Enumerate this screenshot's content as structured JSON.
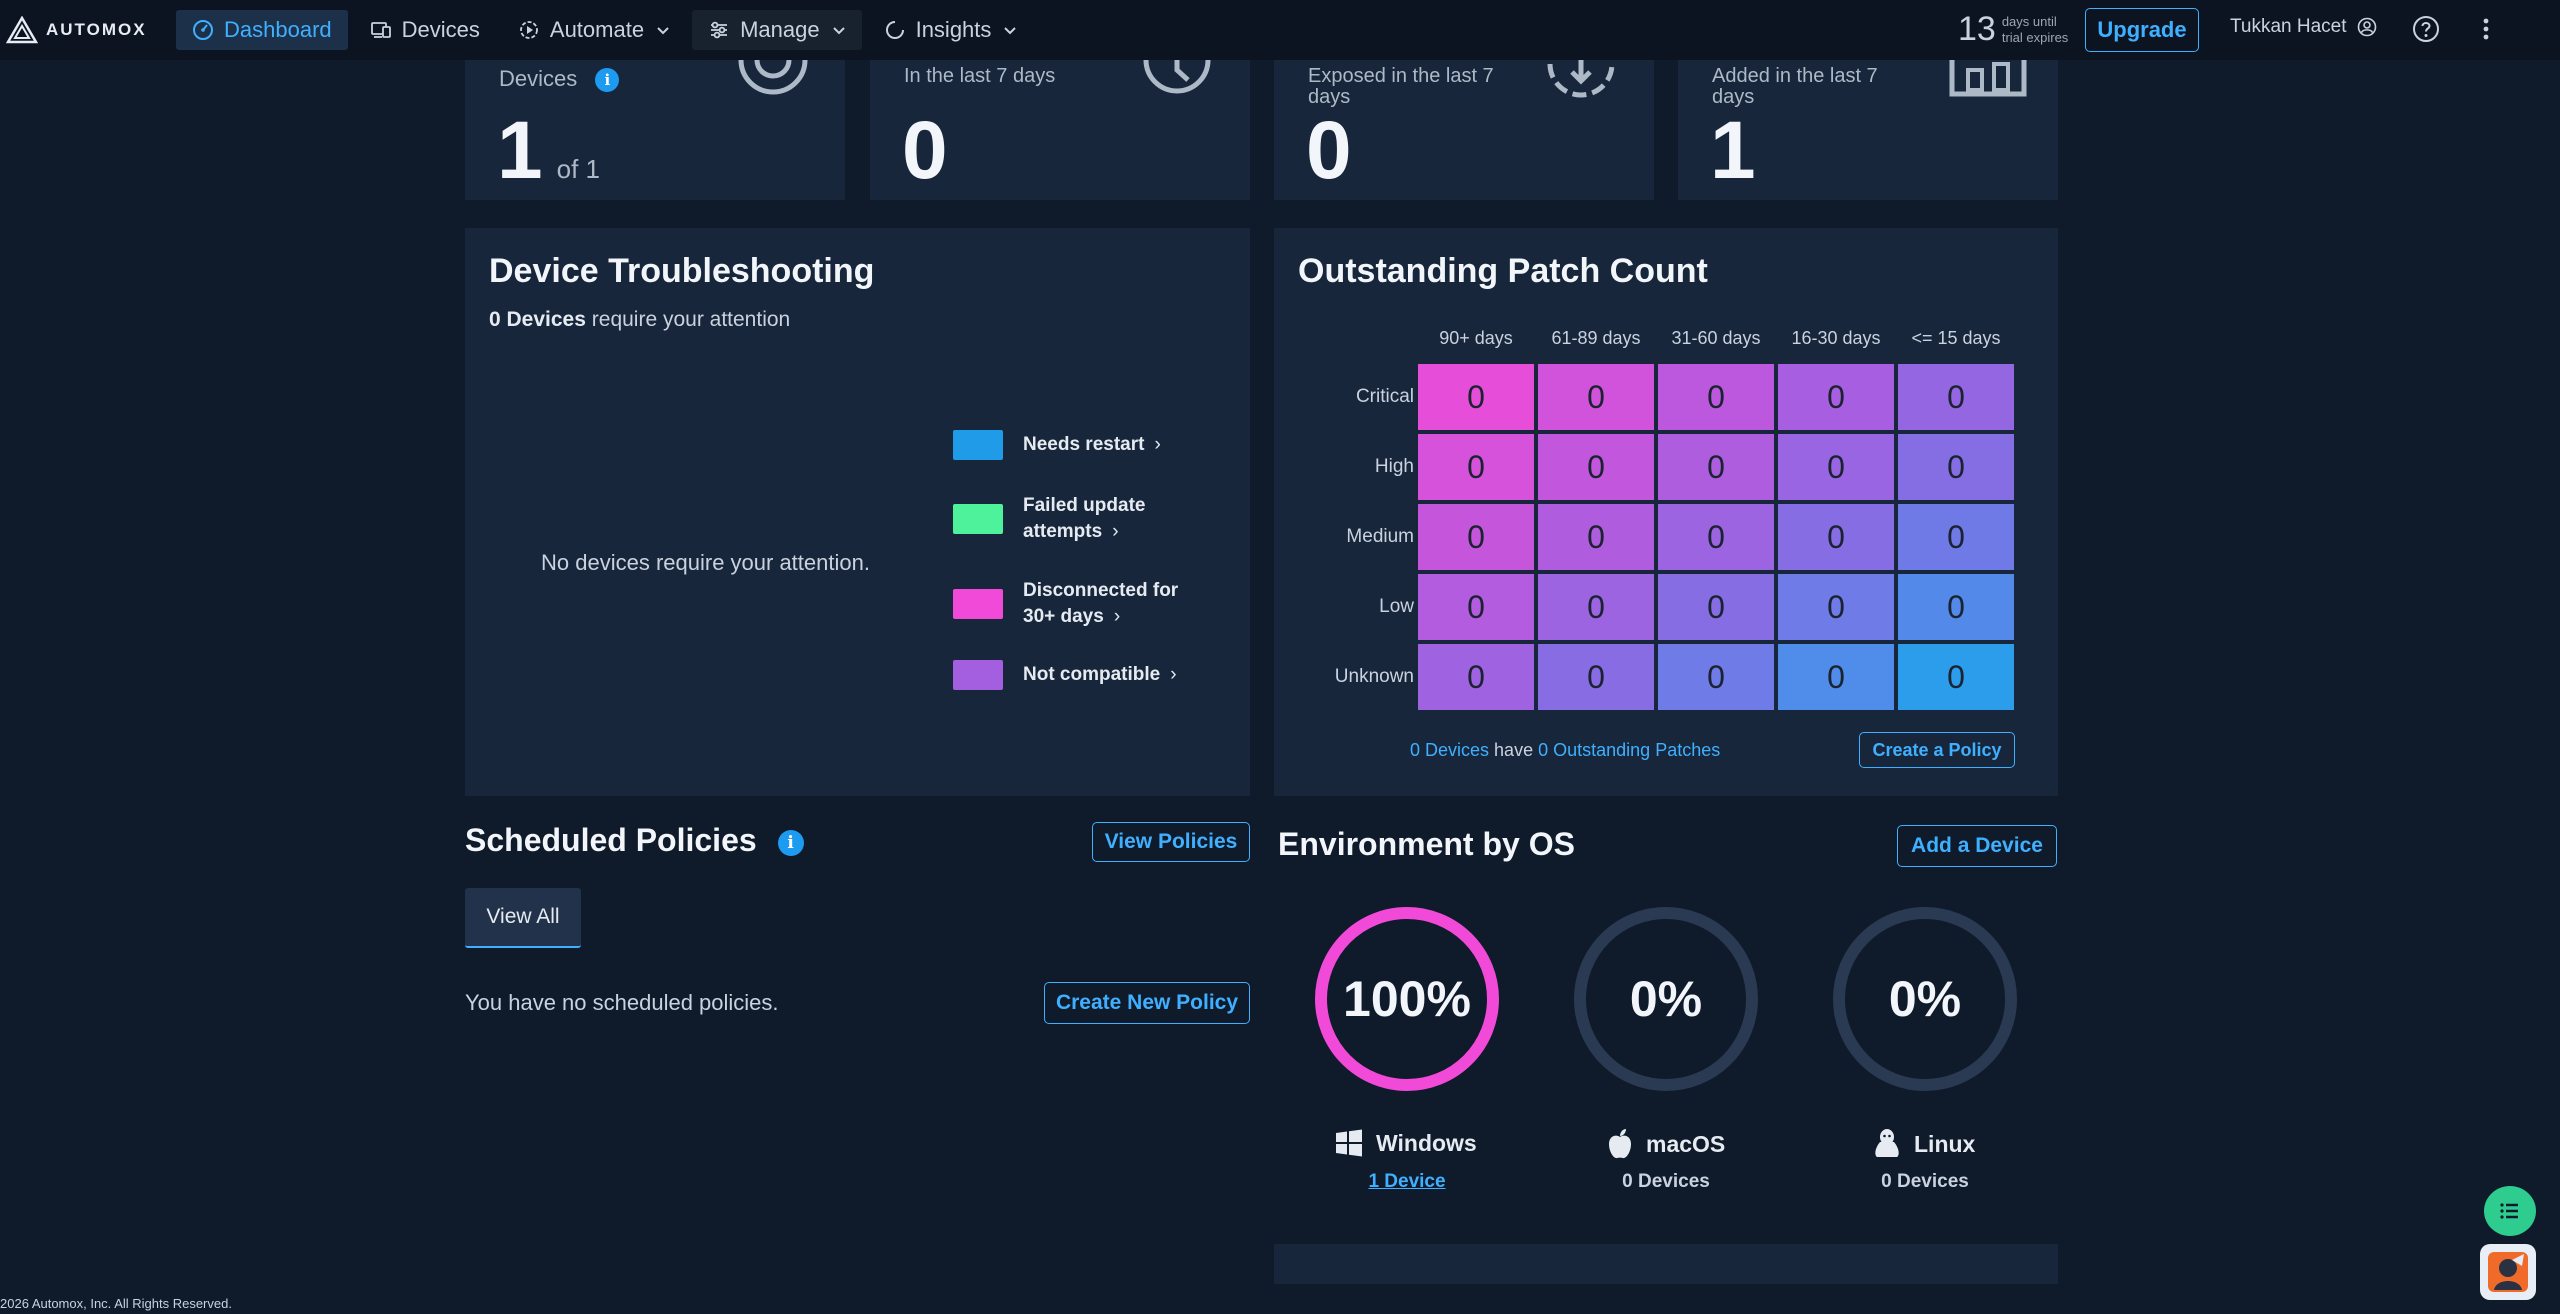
{
  "brand": {
    "name": "AUTOMOX"
  },
  "nav": {
    "items": [
      {
        "label": "Dashboard",
        "icon": "dashboard-icon"
      },
      {
        "label": "Devices",
        "icon": "devices-icon"
      },
      {
        "label": "Automate",
        "icon": "automate-icon"
      },
      {
        "label": "Manage",
        "icon": "manage-icon"
      },
      {
        "label": "Insights",
        "icon": "insights-icon"
      }
    ],
    "trial_days": "13",
    "trial_text_line1": "days until",
    "trial_text_line2": "trial expires",
    "upgrade_label": "Upgrade",
    "user_name": "Tukkan Hacet"
  },
  "stats": [
    {
      "label": "Devices",
      "value": "1",
      "sub": "of 1"
    },
    {
      "label": "In the last 7 days",
      "value": "0"
    },
    {
      "label": "Exposed in the last 7 days",
      "value": "0"
    },
    {
      "label": "Added in the last 7 days",
      "value": "1"
    }
  ],
  "troubleshooting": {
    "title": "Device Troubleshooting",
    "count_bold": "0 Devices",
    "count_rest": "require your attention",
    "empty_message": "No devices require your attention.",
    "legend": [
      {
        "label": "Needs restart",
        "color": "#1f9be8"
      },
      {
        "label": "Failed update attempts",
        "color": "#4ef29b"
      },
      {
        "label": "Disconnected for 30+ days",
        "color": "#f24ad8"
      },
      {
        "label": "Not compatible",
        "color": "#a45fe0"
      }
    ]
  },
  "patch": {
    "title": "Outstanding Patch Count",
    "columns": [
      "90+ days",
      "61-89 days",
      "31-60 days",
      "16-30 days",
      "<= 15 days"
    ],
    "rows": [
      "Critical",
      "High",
      "Medium",
      "Low",
      "Unknown"
    ],
    "values": [
      [
        0,
        0,
        0,
        0,
        0
      ],
      [
        0,
        0,
        0,
        0,
        0
      ],
      [
        0,
        0,
        0,
        0,
        0
      ],
      [
        0,
        0,
        0,
        0,
        0
      ],
      [
        0,
        0,
        0,
        0,
        0
      ]
    ],
    "footer_devices": "0 Devices",
    "footer_have": "have",
    "footer_patches": "0 Outstanding Patches",
    "create_policy_label": "Create a Policy"
  },
  "scheduled": {
    "title": "Scheduled Policies",
    "view_policies_label": "View Policies",
    "view_all_label": "View All",
    "empty_message": "You have no scheduled policies.",
    "create_new_label": "Create New Policy"
  },
  "environment": {
    "title": "Environment by OS",
    "add_device_label": "Add a Device",
    "os": [
      {
        "name": "Windows",
        "percent": "100%",
        "fraction": 1.0,
        "count": "1 Device",
        "color": "#f24ad8"
      },
      {
        "name": "macOS",
        "percent": "0%",
        "fraction": 0,
        "count": "0 Devices",
        "color": "#2a3a52"
      },
      {
        "name": "Linux",
        "percent": "0%",
        "fraction": 0,
        "count": "0 Devices",
        "color": "#2a3a52"
      }
    ]
  },
  "footer": {
    "copyright": "2026 Automox, Inc. All Rights Reserved."
  }
}
